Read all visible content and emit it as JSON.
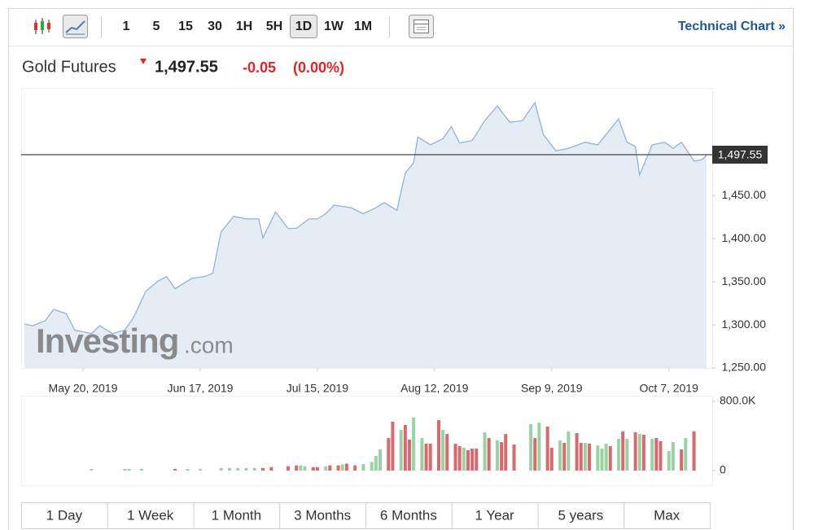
{
  "toolbar": {
    "intervals": [
      "1",
      "5",
      "15",
      "30",
      "1H",
      "5H",
      "1D",
      "1W",
      "1M"
    ],
    "active_interval": 6,
    "link": "Technical Chart »"
  },
  "header": {
    "name": "Gold Futures",
    "price": "1,497.55",
    "change": "-0.05",
    "change_percent": "(0.00%)"
  },
  "watermark": {
    "brand": "Investing",
    "suffix": ".com"
  },
  "chart_data": [
    {
      "type": "area",
      "color": "#8fb3d6",
      "fill": "#e4edf5",
      "x": [
        "2019-05-06",
        "2019-05-08",
        "2019-05-11",
        "2019-05-13",
        "2019-05-16",
        "2019-05-18",
        "2019-05-22",
        "2019-05-24",
        "2019-05-27",
        "2019-05-30",
        "2019-06-01",
        "2019-06-04",
        "2019-06-07",
        "2019-06-09",
        "2019-06-11",
        "2019-06-15",
        "2019-06-18",
        "2019-06-20",
        "2019-06-22",
        "2019-06-25",
        "2019-06-28",
        "2019-07-01",
        "2019-07-02",
        "2019-07-05",
        "2019-07-08",
        "2019-07-10",
        "2019-07-13",
        "2019-07-15",
        "2019-07-17",
        "2019-07-19",
        "2019-07-23",
        "2019-07-26",
        "2019-07-29",
        "2019-07-31",
        "2019-08-03",
        "2019-08-05",
        "2019-08-07",
        "2019-08-08",
        "2019-08-11",
        "2019-08-14",
        "2019-08-16",
        "2019-08-18",
        "2019-08-21",
        "2019-08-24",
        "2019-08-27",
        "2019-08-30",
        "2019-09-02",
        "2019-09-05",
        "2019-09-07",
        "2019-09-10",
        "2019-09-13",
        "2019-09-17",
        "2019-09-20",
        "2019-09-22",
        "2019-09-25",
        "2019-09-27",
        "2019-09-29",
        "2019-09-30",
        "2019-10-03",
        "2019-10-06",
        "2019-10-08",
        "2019-10-10",
        "2019-10-13",
        "2019-10-15",
        "2019-10-16"
      ],
      "values": [
        1301,
        1299,
        1305,
        1318,
        1313,
        1294,
        1290,
        1299,
        1290,
        1294,
        1308,
        1339,
        1351,
        1356,
        1342,
        1354,
        1356,
        1360,
        1408,
        1426,
        1423,
        1423,
        1401,
        1431,
        1412,
        1412,
        1423,
        1423,
        1429,
        1439,
        1436,
        1429,
        1436,
        1442,
        1433,
        1476,
        1488,
        1518,
        1509,
        1516,
        1530,
        1511,
        1514,
        1537,
        1554,
        1535,
        1537,
        1558,
        1521,
        1502,
        1505,
        1512,
        1509,
        1521,
        1539,
        1512,
        1507,
        1474,
        1509,
        1512,
        1505,
        1512,
        1490,
        1492,
        1497
      ],
      "xlim": [
        "2019-05-06",
        "2019-10-16"
      ],
      "xticks": [
        {
          "value": "2019-05-20",
          "label": "May 20, 2019"
        },
        {
          "value": "2019-06-17",
          "label": "Jun 17, 2019"
        },
        {
          "value": "2019-07-15",
          "label": "Jul 15, 2019"
        },
        {
          "value": "2019-08-12",
          "label": "Aug 12, 2019"
        },
        {
          "value": "2019-09-09",
          "label": "Sep 9, 2019"
        },
        {
          "value": "2019-10-07",
          "label": "Oct 7, 2019"
        }
      ],
      "ylim": [
        1250,
        1575
      ],
      "yticks": [
        {
          "value": 1250,
          "label": "1,250.00"
        },
        {
          "value": 1300,
          "label": "1,300.00"
        },
        {
          "value": 1350,
          "label": "1,350.00"
        },
        {
          "value": 1400,
          "label": "1,400.00"
        },
        {
          "value": 1450,
          "label": "1,450.00"
        }
      ],
      "price_line": {
        "value": 1497.55,
        "label": "1,497.55"
      },
      "grid": false
    },
    {
      "type": "bar",
      "x": [
        "2019-05-22",
        "2019-05-30",
        "2019-05-31",
        "2019-06-03",
        "2019-06-11",
        "2019-06-14",
        "2019-06-17",
        "2019-06-22",
        "2019-06-24",
        "2019-06-26",
        "2019-06-28",
        "2019-06-30",
        "2019-07-02",
        "2019-07-04",
        "2019-07-08",
        "2019-07-10",
        "2019-07-11",
        "2019-07-12",
        "2019-07-14",
        "2019-07-15",
        "2019-07-17",
        "2019-07-18",
        "2019-07-20",
        "2019-07-21",
        "2019-07-22",
        "2019-07-24",
        "2019-07-26",
        "2019-07-28",
        "2019-07-29",
        "2019-07-30",
        "2019-08-01",
        "2019-08-02",
        "2019-08-04",
        "2019-08-05",
        "2019-08-06",
        "2019-08-07",
        "2019-08-09",
        "2019-08-10",
        "2019-08-11",
        "2019-08-13",
        "2019-08-14",
        "2019-08-15",
        "2019-08-17",
        "2019-08-18",
        "2019-08-19",
        "2019-08-20",
        "2019-08-21",
        "2019-08-22",
        "2019-08-24",
        "2019-08-25",
        "2019-08-27",
        "2019-08-28",
        "2019-08-29",
        "2019-08-31",
        "2019-09-04",
        "2019-09-05",
        "2019-09-06",
        "2019-09-08",
        "2019-09-09",
        "2019-09-11",
        "2019-09-12",
        "2019-09-13",
        "2019-09-15",
        "2019-09-16",
        "2019-09-17",
        "2019-09-18",
        "2019-09-20",
        "2019-09-21",
        "2019-09-22",
        "2019-09-23",
        "2019-09-25",
        "2019-09-26",
        "2019-09-27",
        "2019-09-29",
        "2019-09-30",
        "2019-10-01",
        "2019-10-03",
        "2019-10-04",
        "2019-10-05",
        "2019-10-07",
        "2019-10-08",
        "2019-10-10",
        "2019-10-11",
        "2019-10-13"
      ],
      "values": [
        20000,
        20000,
        20000,
        20000,
        20000,
        20000,
        20000,
        30000,
        30000,
        30000,
        30000,
        30000,
        30000,
        40000,
        50000,
        60000,
        60000,
        50000,
        40000,
        40000,
        50000,
        60000,
        60000,
        70000,
        80000,
        60000,
        75000,
        100000,
        170000,
        245000,
        376000,
        565000,
        470000,
        527000,
        358000,
        612000,
        376000,
        310000,
        310000,
        584000,
        470000,
        423000,
        310000,
        282000,
        264000,
        235000,
        254000,
        254000,
        442000,
        376000,
        348000,
        329000,
        423000,
        301000,
        536000,
        376000,
        555000,
        508000,
        264000,
        348000,
        320000,
        452000,
        433000,
        320000,
        320000,
        310000,
        292000,
        254000,
        310000,
        282000,
        367000,
        452000,
        367000,
        442000,
        423000,
        414000,
        367000,
        376000,
        339000,
        226000,
        329000,
        245000,
        376000,
        452000
      ],
      "colors": [
        "#99d3a4",
        "#99d3a4",
        "#99d3a4",
        "#99d3a4",
        "#d9696c",
        "#99d3a4",
        "#99d3a4",
        "#99d3a4",
        "#99d3a4",
        "#99d3a4",
        "#99d3a4",
        "#99d3a4",
        "#d9696c",
        "#d9696c",
        "#d9696c",
        "#d9696c",
        "#99d3a4",
        "#99d3a4",
        "#d9696c",
        "#d9696c",
        "#99d3a4",
        "#d9696c",
        "#d9696c",
        "#99d3a4",
        "#d9696c",
        "#d9696c",
        "#99d3a4",
        "#99d3a4",
        "#99d3a4",
        "#99d3a4",
        "#d9696c",
        "#d9696c",
        "#99d3a4",
        "#d9696c",
        "#d9696c",
        "#99d3a4",
        "#99d3a4",
        "#d9696c",
        "#d9696c",
        "#d9696c",
        "#99d3a4",
        "#d9696c",
        "#d9696c",
        "#d9696c",
        "#99d3a4",
        "#d9696c",
        "#d9696c",
        "#d9696c",
        "#99d3a4",
        "#d9696c",
        "#99d3a4",
        "#d9696c",
        "#d9696c",
        "#d9696c",
        "#99d3a4",
        "#d9696c",
        "#99d3a4",
        "#d9696c",
        "#d9696c",
        "#99d3a4",
        "#d9696c",
        "#99d3a4",
        "#d9696c",
        "#d9696c",
        "#99d3a4",
        "#d9696c",
        "#99d3a4",
        "#99d3a4",
        "#99d3a4",
        "#d9696c",
        "#99d3a4",
        "#d9696c",
        "#99d3a4",
        "#d9696c",
        "#99d3a4",
        "#d9696c",
        "#99d3a4",
        "#d9696c",
        "#d9696c",
        "#99d3a4",
        "#99d3a4",
        "#d9696c",
        "#99d3a4",
        "#d9696c"
      ],
      "xlim": [
        "2019-05-06",
        "2019-10-16"
      ],
      "ylim": [
        0,
        800000
      ],
      "yticks": [
        0,
        {
          "value": 800000,
          "label": "800.0K"
        }
      ]
    }
  ],
  "range_buttons": [
    "1 Day",
    "1 Week",
    "1 Month",
    "3 Months",
    "6 Months",
    "1 Year",
    "5 years",
    "Max"
  ]
}
